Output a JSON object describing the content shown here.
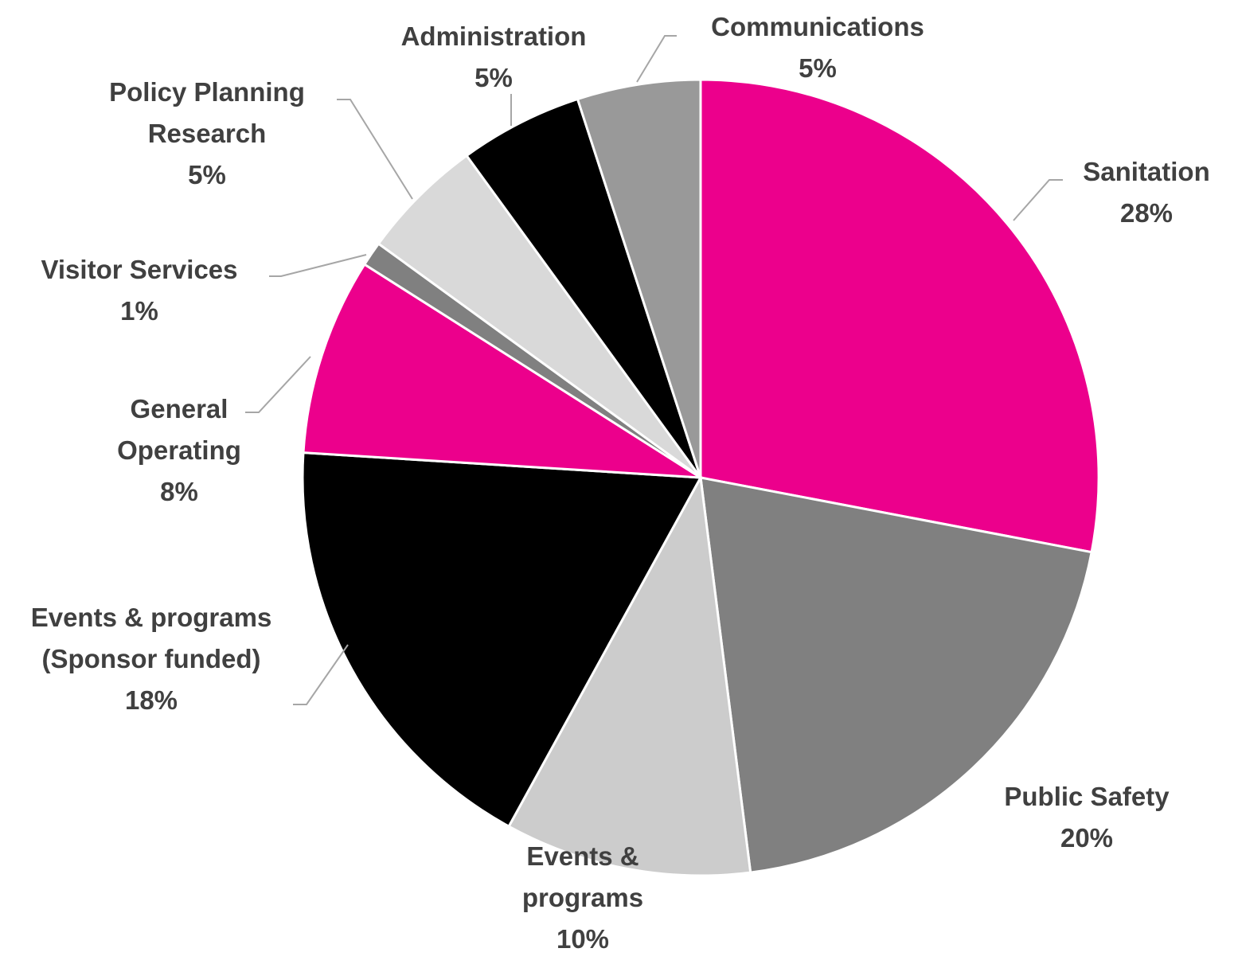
{
  "chart_data": {
    "type": "pie",
    "categories": [
      "Sanitation",
      "Public Safety",
      "Events & programs",
      "Events & programs (Sponsor funded)",
      "General Operating",
      "Visitor Services",
      "Policy Planning Research",
      "Administration",
      "Communications"
    ],
    "values": [
      28,
      20,
      10,
      18,
      8,
      1,
      5,
      5,
      5
    ],
    "value_labels": [
      "28%",
      "20%",
      "10%",
      "18%",
      "8%",
      "1%",
      "5%",
      "5%",
      "5%"
    ],
    "colors": [
      "#ec008c",
      "#808080",
      "#cccccc",
      "#000000",
      "#ec008c",
      "#808080",
      "#d9d9d9",
      "#000000",
      "#999999"
    ]
  }
}
